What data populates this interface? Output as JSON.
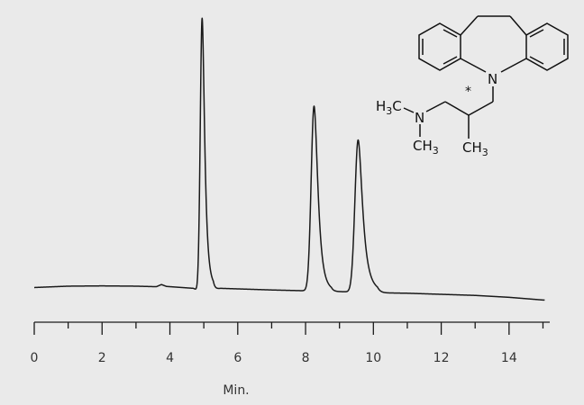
{
  "chart_data": {
    "type": "line",
    "title": "",
    "xlabel": "Min.",
    "ylabel": "",
    "xlim": [
      0,
      15.2
    ],
    "x_ticks": [
      0,
      2,
      4,
      6,
      8,
      10,
      12,
      14
    ],
    "x_minor_step": 1,
    "grid": false,
    "legend": "none",
    "trace_color": "#1a1a1a",
    "series": [
      {
        "baseline": [
          [
            0,
            0.015
          ],
          [
            1,
            0.02
          ],
          [
            2,
            0.021
          ],
          [
            3,
            0.02
          ],
          [
            3.6,
            0.018
          ],
          [
            3.75,
            0.026
          ],
          [
            3.9,
            0.019
          ],
          [
            4.7,
            0.012
          ],
          [
            4.8,
            0.004
          ],
          [
            5.5,
            0.012
          ],
          [
            7,
            0.006
          ],
          [
            8,
            0.003
          ],
          [
            9,
            0.0
          ],
          [
            10,
            -0.004
          ],
          [
            11,
            -0.006
          ],
          [
            12,
            -0.01
          ],
          [
            13,
            -0.014
          ],
          [
            14,
            -0.021
          ],
          [
            15,
            -0.031
          ]
        ],
        "peaks": [
          {
            "rt": 4.95,
            "height": 1.0,
            "sigma": 0.055,
            "tail": 0.15
          },
          {
            "rt": 8.25,
            "height": 0.68,
            "sigma": 0.085,
            "tail": 0.14
          },
          {
            "rt": 9.55,
            "height": 0.56,
            "sigma": 0.095,
            "tail": 0.16
          }
        ]
      }
    ]
  },
  "structure": {
    "n_label": "N",
    "h3c_h": "H",
    "h3c_sub": "3",
    "h3c_c": "C",
    "n2_label": "N",
    "ch3_left_c": "CH",
    "ch3_left_sub": "3",
    "ch3_right_c": "CH",
    "ch3_right_sub": "3",
    "stereo_mark": "*"
  }
}
